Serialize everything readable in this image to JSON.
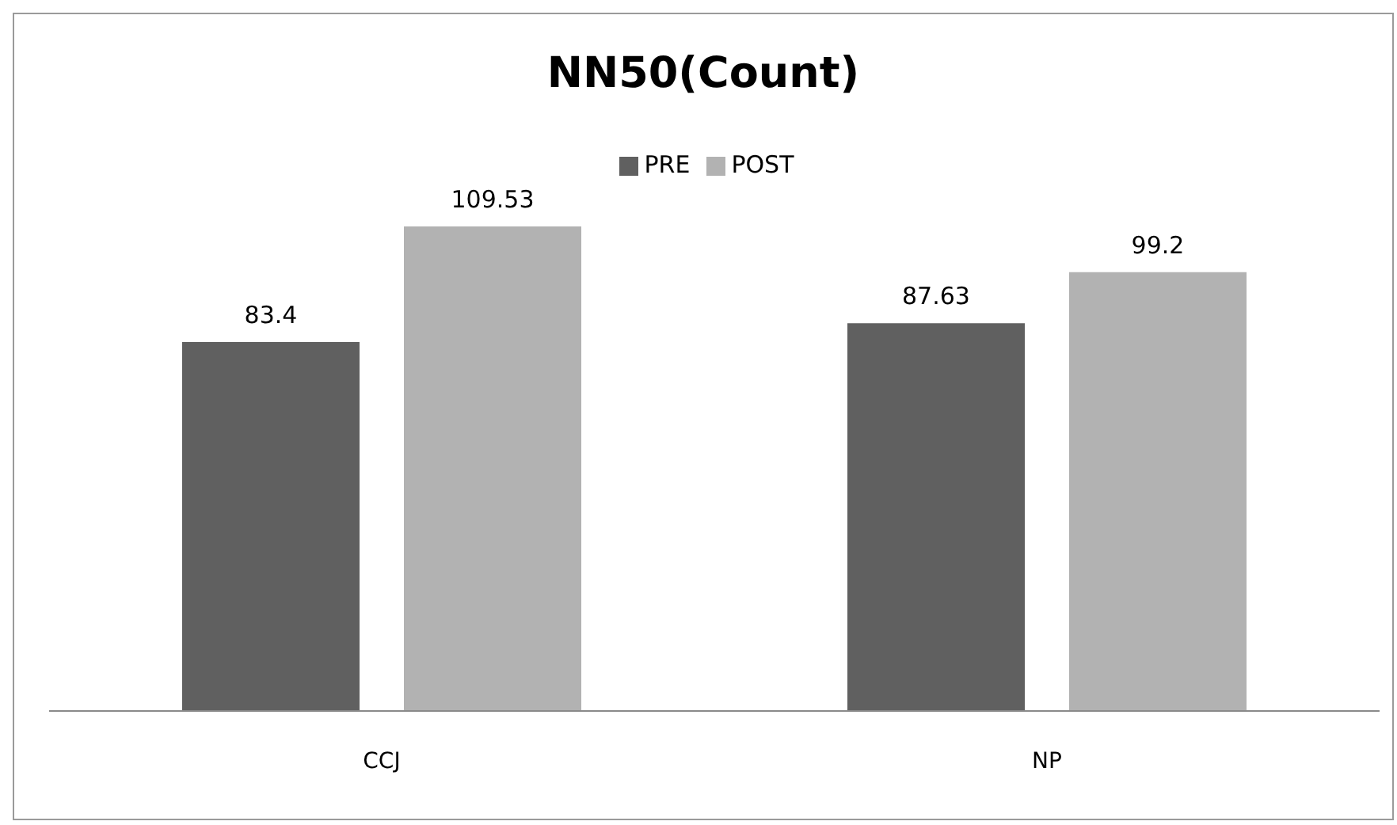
{
  "chart_data": {
    "type": "bar",
    "title": "NN50(Count)",
    "categories": [
      "CCJ",
      "NP"
    ],
    "series": [
      {
        "name": "PRE",
        "color": "#606060",
        "values": [
          83.4,
          87.63
        ]
      },
      {
        "name": "POST",
        "color": "#b2b2b2",
        "values": [
          109.53,
          99.2
        ]
      }
    ],
    "data_labels": true,
    "legend": "top"
  }
}
